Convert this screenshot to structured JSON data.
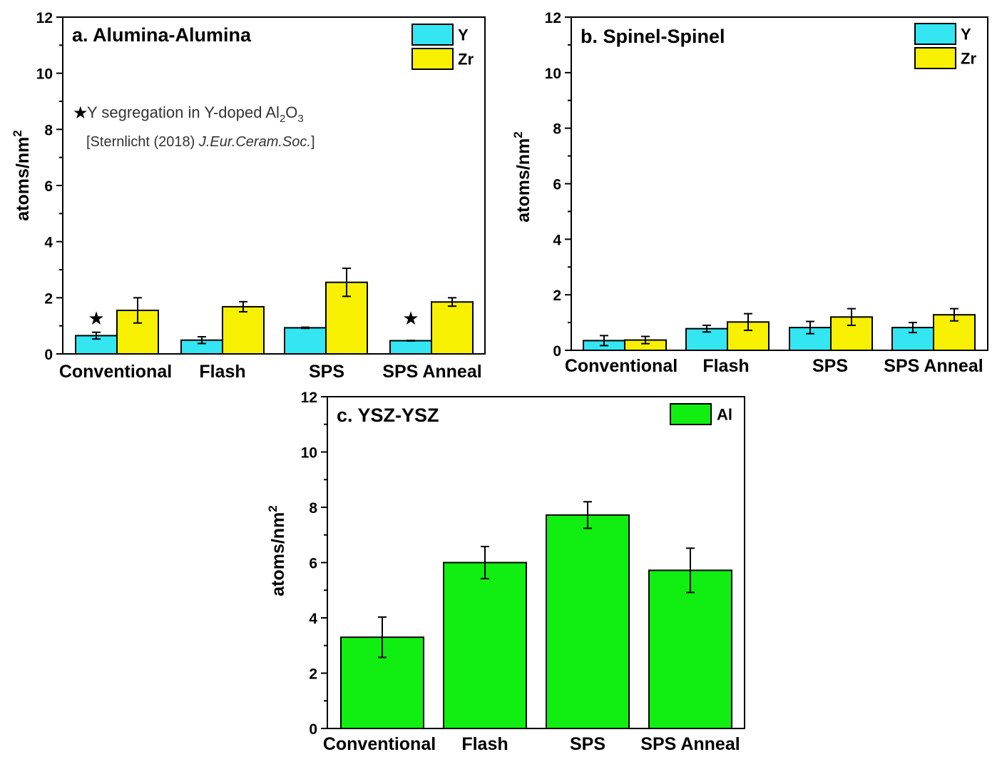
{
  "chart_data": [
    {
      "type": "bar",
      "title": "a. Alumina-Alumina",
      "ylabel": "atoms/nm",
      "ylabel_sup": "2",
      "ylim": [
        0,
        12
      ],
      "yticks": [
        0,
        2,
        4,
        6,
        8,
        10,
        12
      ],
      "categories": [
        "Conventional",
        "Flash",
        "SPS",
        "SPS Anneal"
      ],
      "series": [
        {
          "name": "Y",
          "color": "#33E6F2",
          "values": [
            0.65,
            0.49,
            0.93,
            0.47
          ],
          "errors": [
            0.12,
            0.12,
            0.02,
            0.01
          ]
        },
        {
          "name": "Zr",
          "color": "#F7F000",
          "values": [
            1.55,
            1.68,
            2.55,
            1.85
          ],
          "errors": [
            0.45,
            0.18,
            0.5,
            0.15
          ]
        }
      ],
      "legend_position": "top-right",
      "markers": [
        {
          "category_index": 0,
          "y": 1.3,
          "symbol": "★",
          "color": "#EE1111"
        },
        {
          "category_index": 3,
          "y": 1.3,
          "symbol": "★",
          "color": "#EE1111"
        }
      ],
      "annotation": {
        "symbol": "★",
        "text": "Y segregation in Y-doped Al",
        "sub1": "2",
        "mid": "O",
        "sub2": "3",
        "ref_prefix": "[Sternlicht (2018) ",
        "ref_italic": "J.Eur.Ceram.Soc.",
        "ref_suffix": "]"
      }
    },
    {
      "type": "bar",
      "title": "b. Spinel-Spinel",
      "ylabel": "atoms/nm",
      "ylabel_sup": "2",
      "ylim": [
        0,
        12
      ],
      "yticks": [
        0,
        2,
        4,
        6,
        8,
        10,
        12
      ],
      "categories": [
        "Conventional",
        "Flash",
        "SPS",
        "SPS Anneal"
      ],
      "series": [
        {
          "name": "Y",
          "color": "#33E6F2",
          "values": [
            0.35,
            0.78,
            0.82,
            0.82
          ],
          "errors": [
            0.18,
            0.12,
            0.22,
            0.18
          ]
        },
        {
          "name": "Zr",
          "color": "#F7F000",
          "values": [
            0.37,
            1.02,
            1.2,
            1.28
          ],
          "errors": [
            0.13,
            0.3,
            0.3,
            0.22
          ]
        }
      ],
      "legend_position": "top-right"
    },
    {
      "type": "bar",
      "title": "c. YSZ-YSZ",
      "ylabel": "atoms/nm",
      "ylabel_sup": "2",
      "ylim": [
        0,
        12
      ],
      "yticks": [
        0,
        2,
        4,
        6,
        8,
        10,
        12
      ],
      "categories": [
        "Conventional",
        "Flash",
        "SPS",
        "SPS Anneal"
      ],
      "series": [
        {
          "name": "Al",
          "color": "#11EE11",
          "values": [
            3.3,
            6.0,
            7.72,
            5.72
          ],
          "errors": [
            0.73,
            0.58,
            0.48,
            0.8
          ]
        }
      ],
      "legend_position": "top-right"
    }
  ]
}
